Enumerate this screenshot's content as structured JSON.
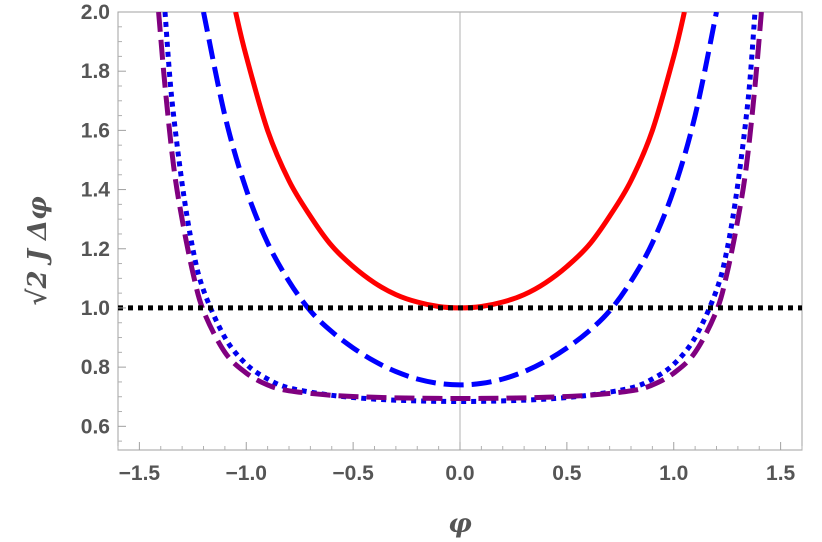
{
  "chart_data": {
    "type": "line",
    "title": "",
    "xlabel": "φ",
    "ylabel": "√2 J Δφ",
    "xlim": [
      -1.6,
      1.6
    ],
    "ylim": [
      0.52,
      2.0
    ],
    "x_ticks": [
      "−1.5",
      "−1.0",
      "−0.5",
      "0.0",
      "0.5",
      "1.0",
      "1.5"
    ],
    "x_tick_values": [
      -1.5,
      -1.0,
      -0.5,
      0.0,
      0.5,
      1.0,
      1.5
    ],
    "y_ticks": [
      "0.6",
      "0.8",
      "1.0",
      "1.2",
      "1.4",
      "1.6",
      "1.8",
      "2.0"
    ],
    "y_tick_values": [
      0.6,
      0.8,
      1.0,
      1.2,
      1.4,
      1.6,
      1.8,
      2.0
    ],
    "grid": false,
    "series": [
      {
        "style": "solid",
        "color": "#ff0000",
        "x": [
          -1.05,
          -1.0,
          -0.9,
          -0.8,
          -0.7,
          -0.6,
          -0.5,
          -0.4,
          -0.3,
          -0.2,
          -0.1,
          0.0,
          0.1,
          0.2,
          0.3,
          0.4,
          0.5,
          0.6,
          0.7,
          0.8,
          0.9,
          1.0,
          1.05
        ],
        "y": [
          2.0,
          1.85,
          1.6,
          1.43,
          1.31,
          1.21,
          1.14,
          1.085,
          1.045,
          1.02,
          1.005,
          1.0,
          1.005,
          1.02,
          1.045,
          1.085,
          1.14,
          1.21,
          1.31,
          1.43,
          1.6,
          1.85,
          2.0
        ]
      },
      {
        "style": "dashed",
        "color": "#0000ff",
        "x": [
          -1.2,
          -1.1,
          -1.0,
          -0.9,
          -0.8,
          -0.7,
          -0.6,
          -0.5,
          -0.4,
          -0.3,
          -0.2,
          -0.1,
          0.0,
          0.1,
          0.2,
          0.3,
          0.4,
          0.5,
          0.6,
          0.7,
          0.8,
          0.9,
          1.0,
          1.1,
          1.2
        ],
        "y": [
          2.0,
          1.65,
          1.4,
          1.22,
          1.09,
          0.99,
          0.92,
          0.865,
          0.82,
          0.785,
          0.76,
          0.745,
          0.74,
          0.745,
          0.76,
          0.785,
          0.82,
          0.865,
          0.92,
          0.99,
          1.09,
          1.22,
          1.4,
          1.65,
          2.0
        ]
      },
      {
        "style": "dotted",
        "color": "#0000ee",
        "x": [
          -1.38,
          -1.35,
          -1.3,
          -1.25,
          -1.2,
          -1.1,
          -1.0,
          -0.9,
          -0.8,
          -0.6,
          -0.4,
          -0.2,
          0.0,
          0.2,
          0.4,
          0.6,
          0.8,
          0.9,
          1.0,
          1.1,
          1.2,
          1.25,
          1.3,
          1.35,
          1.38
        ],
        "y": [
          2.0,
          1.72,
          1.42,
          1.2,
          1.06,
          0.9,
          0.81,
          0.76,
          0.73,
          0.705,
          0.692,
          0.686,
          0.684,
          0.686,
          0.692,
          0.705,
          0.73,
          0.76,
          0.81,
          0.9,
          1.06,
          1.2,
          1.42,
          1.72,
          2.0
        ]
      },
      {
        "style": "dashed",
        "color": "#800080",
        "x": [
          -1.41,
          -1.38,
          -1.34,
          -1.3,
          -1.25,
          -1.2,
          -1.1,
          -1.0,
          -0.9,
          -0.8,
          -0.6,
          -0.4,
          -0.2,
          0.0,
          0.2,
          0.4,
          0.6,
          0.8,
          0.9,
          1.0,
          1.1,
          1.2,
          1.25,
          1.3,
          1.34,
          1.38,
          1.41
        ],
        "y": [
          2.0,
          1.75,
          1.48,
          1.3,
          1.12,
          0.99,
          0.85,
          0.78,
          0.74,
          0.72,
          0.705,
          0.698,
          0.695,
          0.694,
          0.695,
          0.698,
          0.705,
          0.72,
          0.74,
          0.78,
          0.85,
          0.99,
          1.12,
          1.3,
          1.48,
          1.75,
          2.0
        ]
      },
      {
        "style": "dotted",
        "color": "#000000",
        "x": [
          -1.6,
          1.6
        ],
        "y": [
          1.0,
          1.0
        ]
      }
    ]
  }
}
